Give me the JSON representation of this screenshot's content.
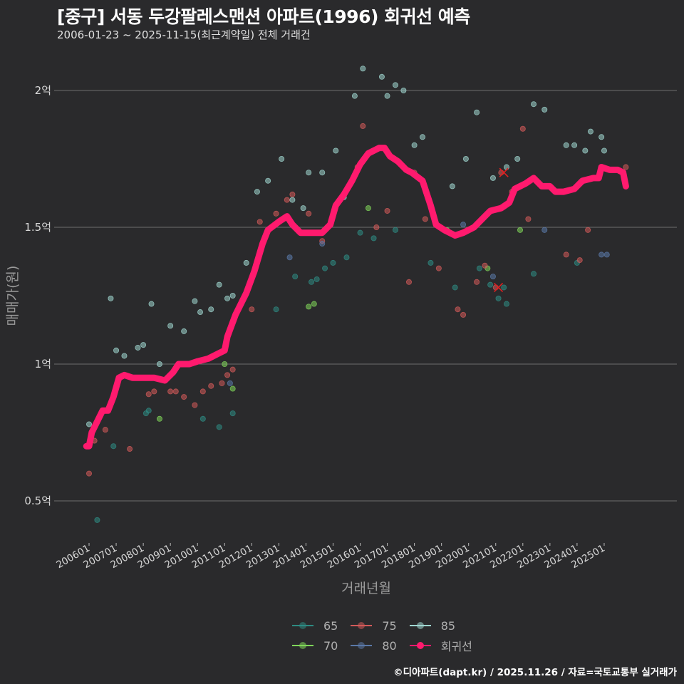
{
  "header": {
    "title": "[중구] 서동 두강팔레스맨션 아파트(1996) 회귀선 예측",
    "subtitle": "2006-01-23 ~ 2025-11-15(최근계약일) 전체 거래건"
  },
  "footer": {
    "credit": "©디아파트(dapt.kr) / 2025.11.26 / 자료=국토교통부 실거래가"
  },
  "colors": {
    "background": "#2a2a2c",
    "grid": "#6e6e6e",
    "regression": "#ff1a6e",
    "s65": "#2e8b83",
    "s70": "#7fd65a",
    "s75": "#d25a5a",
    "s80": "#5a78a8",
    "s85": "#9fd6d0"
  },
  "legend": [
    {
      "key": "65",
      "label": "65",
      "color": "#2e8b83"
    },
    {
      "key": "75",
      "label": "75",
      "color": "#d25a5a"
    },
    {
      "key": "85",
      "label": "85",
      "color": "#9fd6d0"
    },
    {
      "key": "70",
      "label": "70",
      "color": "#7fd65a"
    },
    {
      "key": "80",
      "label": "80",
      "color": "#5a78a8"
    },
    {
      "key": "reg",
      "label": "회귀선",
      "color": "#ff1a6e"
    }
  ],
  "chart_data": {
    "type": "scatter",
    "title": "[중구] 서동 두강팔레스맨션 아파트(1996) 회귀선 예측",
    "subtitle": "2006-01-23 ~ 2025-11-15(최근계약일) 전체 거래건",
    "xlabel": "거래년월",
    "ylabel": "매매가(원)",
    "x_ticks": [
      "200601",
      "200701",
      "200801",
      "200901",
      "201001",
      "201101",
      "201201",
      "201301",
      "201401",
      "201501",
      "201601",
      "201701",
      "201801",
      "201901",
      "202001",
      "202101",
      "202201",
      "202301",
      "202401",
      "202501"
    ],
    "y_ticks": [
      {
        "value": 0.5,
        "label": "0.5억"
      },
      {
        "value": 1.0,
        "label": "1억"
      },
      {
        "value": 1.5,
        "label": "1.5억"
      },
      {
        "value": 2.0,
        "label": "2억"
      }
    ],
    "ylim": [
      0.36,
      2.1
    ],
    "y_unit": "억원",
    "grid": "horizontal",
    "legend_position": "bottom",
    "series": [
      {
        "name": "회귀선",
        "type": "line",
        "color": "#ff1a6e",
        "x": [
          2005.9,
          2006.0,
          2006.1,
          2006.3,
          2006.5,
          2006.7,
          2006.9,
          2007.1,
          2007.3,
          2007.6,
          2008.0,
          2008.4,
          2008.8,
          2009.1,
          2009.3,
          2009.7,
          2010.0,
          2010.4,
          2010.8,
          2011.0,
          2011.1,
          2011.4,
          2011.8,
          2012.1,
          2012.4,
          2012.6,
          2013.0,
          2013.3,
          2013.5,
          2013.8,
          2014.2,
          2014.6,
          2014.9,
          2015.1,
          2015.4,
          2015.7,
          2016.0,
          2016.3,
          2016.7,
          2016.9,
          2017.1,
          2017.4,
          2017.7,
          2017.9,
          2018.3,
          2018.6,
          2018.8,
          2019.1,
          2019.5,
          2019.8,
          2020.2,
          2020.6,
          2020.8,
          2021.2,
          2021.5,
          2021.7,
          2022.1,
          2022.4,
          2022.7,
          2023.0,
          2023.2,
          2023.5,
          2023.9,
          2024.2,
          2024.6,
          2024.8,
          2024.9,
          2025.2,
          2025.5,
          2025.7,
          2025.8
        ],
        "y": [
          0.7,
          0.7,
          0.75,
          0.79,
          0.83,
          0.83,
          0.88,
          0.95,
          0.96,
          0.95,
          0.95,
          0.95,
          0.94,
          0.97,
          1.0,
          1.0,
          1.01,
          1.02,
          1.04,
          1.05,
          1.1,
          1.18,
          1.26,
          1.34,
          1.44,
          1.49,
          1.52,
          1.54,
          1.51,
          1.48,
          1.48,
          1.48,
          1.51,
          1.58,
          1.62,
          1.67,
          1.73,
          1.77,
          1.79,
          1.79,
          1.76,
          1.74,
          1.71,
          1.7,
          1.67,
          1.58,
          1.51,
          1.49,
          1.47,
          1.48,
          1.5,
          1.54,
          1.56,
          1.57,
          1.59,
          1.64,
          1.66,
          1.68,
          1.65,
          1.65,
          1.63,
          1.63,
          1.64,
          1.67,
          1.68,
          1.68,
          1.72,
          1.71,
          1.71,
          1.7,
          1.65
        ]
      },
      {
        "name": "65",
        "type": "scatter",
        "color": "#2e8b83",
        "x": [
          2006.3,
          2006.9,
          2008.1,
          2008.2,
          2010.2,
          2010.8,
          2011.3,
          2012.9,
          2014.2,
          2014.4,
          2014.7,
          2015.0,
          2015.5,
          2016.5,
          2017.3,
          2018.6,
          2019.5,
          2020.4,
          2020.8,
          2021.1,
          2021.4,
          2021.3,
          2022.4,
          2024.0,
          2016.0,
          2013.6
        ],
        "y": [
          0.43,
          0.7,
          0.82,
          0.83,
          0.8,
          0.77,
          0.82,
          1.2,
          1.3,
          1.31,
          1.35,
          1.37,
          1.39,
          1.46,
          1.49,
          1.37,
          1.28,
          1.35,
          1.29,
          1.24,
          1.22,
          1.28,
          1.33,
          1.37,
          1.48,
          1.32
        ]
      },
      {
        "name": "70",
        "type": "scatter",
        "color": "#7fd65a",
        "x": [
          2008.6,
          2011.3,
          2011.0,
          2014.1,
          2014.3,
          2016.3,
          2020.7,
          2021.9,
          2019.2
        ],
        "y": [
          0.8,
          0.91,
          1.0,
          1.21,
          1.22,
          1.57,
          1.35,
          1.49,
          1.49
        ]
      },
      {
        "name": "75",
        "type": "scatter",
        "color": "#d25a5a",
        "x": [
          2006.0,
          2006.2,
          2006.6,
          2007.5,
          2008.2,
          2008.4,
          2009.0,
          2009.2,
          2009.5,
          2009.9,
          2010.2,
          2010.5,
          2010.9,
          2011.1,
          2011.3,
          2012.0,
          2012.3,
          2012.9,
          2013.3,
          2013.5,
          2014.1,
          2014.6,
          2015.9,
          2016.1,
          2016.6,
          2017.0,
          2017.8,
          2018.4,
          2018.9,
          2019.6,
          2019.8,
          2020.3,
          2020.6,
          2021.0,
          2021.2,
          2021.6,
          2022.0,
          2022.2,
          2023.6,
          2024.1,
          2024.4,
          2025.8,
          2018.0
        ],
        "y": [
          0.6,
          0.72,
          0.76,
          0.69,
          0.89,
          0.9,
          0.9,
          0.9,
          0.88,
          0.85,
          0.9,
          0.92,
          0.93,
          0.96,
          0.98,
          1.2,
          1.52,
          1.55,
          1.6,
          1.62,
          1.55,
          1.45,
          1.72,
          1.87,
          1.5,
          1.56,
          1.3,
          1.53,
          1.35,
          1.2,
          1.18,
          1.3,
          1.36,
          1.28,
          1.7,
          1.63,
          1.86,
          1.53,
          1.4,
          1.38,
          1.49,
          1.72,
          1.7
        ]
      },
      {
        "name": "80",
        "type": "scatter",
        "color": "#5a78a8",
        "x": [
          2011.2,
          2013.4,
          2014.6,
          2019.8,
          2020.9,
          2022.8,
          2024.9,
          2025.1
        ],
        "y": [
          0.93,
          1.39,
          1.44,
          1.51,
          1.32,
          1.49,
          1.4,
          1.4
        ]
      },
      {
        "name": "85",
        "type": "scatter",
        "color": "#9fd6d0",
        "x": [
          2006.0,
          2006.8,
          2007.0,
          2007.3,
          2007.8,
          2008.0,
          2008.3,
          2008.6,
          2009.0,
          2009.5,
          2009.9,
          2010.1,
          2010.5,
          2010.8,
          2011.1,
          2011.3,
          2011.8,
          2012.2,
          2012.6,
          2013.1,
          2013.5,
          2013.9,
          2014.1,
          2014.6,
          2015.1,
          2015.4,
          2015.8,
          2016.1,
          2016.8,
          2017.0,
          2017.3,
          2017.6,
          2018.0,
          2018.3,
          2019.4,
          2019.9,
          2020.3,
          2020.9,
          2021.4,
          2021.8,
          2022.4,
          2022.8,
          2023.6,
          2023.9,
          2024.3,
          2024.5,
          2024.9,
          2025.0
        ],
        "y": [
          0.78,
          1.24,
          1.05,
          1.03,
          1.06,
          1.07,
          1.22,
          1.0,
          1.14,
          1.12,
          1.23,
          1.19,
          1.2,
          1.29,
          1.24,
          1.25,
          1.37,
          1.63,
          1.67,
          1.75,
          1.6,
          1.57,
          1.7,
          1.7,
          1.78,
          1.61,
          1.98,
          2.08,
          2.05,
          1.98,
          2.02,
          2.0,
          1.8,
          1.83,
          1.65,
          1.75,
          1.92,
          1.68,
          1.72,
          1.75,
          1.95,
          1.93,
          1.8,
          1.8,
          1.78,
          1.85,
          1.83,
          1.78
        ]
      }
    ],
    "annotations": [
      {
        "type": "x-marker",
        "x": 2021.3,
        "y": 1.7,
        "color": "#e02020"
      },
      {
        "type": "x-marker",
        "x": 2021.1,
        "y": 1.28,
        "color": "#e02020"
      }
    ]
  }
}
